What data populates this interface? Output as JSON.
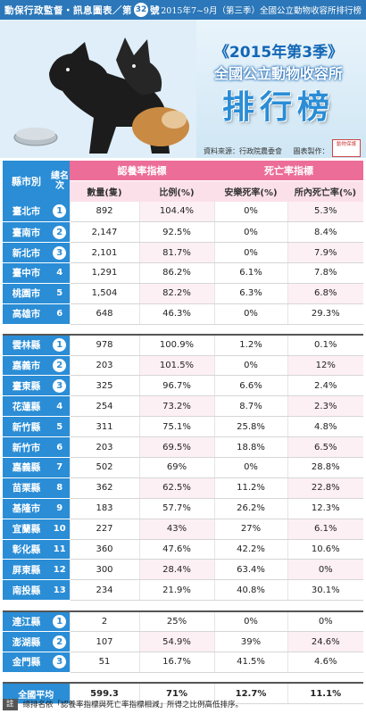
{
  "header": {
    "publication_pre": "動保行政監督・訊息圖表／第",
    "issue_no": "32",
    "publication_post": "號",
    "period": "2015年7~9月（第三季）全國公立動物收容所排行榜"
  },
  "banner": {
    "edition": "《2015年第3季》",
    "subtitle": "全國公立動物收容所",
    "title": "排行榜",
    "source_label": "資料來源：行政院農委會",
    "design_label": "圖表製作：",
    "logo_text": "動物保護"
  },
  "colors": {
    "header_blue": "#2a8dd6",
    "pink": "#ec6d98",
    "pink_light": "#fbe0ea"
  },
  "table": {
    "col_city": "縣市別",
    "col_rank": "總名次",
    "group_adoption": "認養率指標",
    "group_death": "死亡率指標",
    "col_count": "數量(隻)",
    "col_ratio": "比例(%)",
    "col_euth": "安樂死率(%)",
    "col_death": "所內死亡率(%)",
    "group1": [
      {
        "city": "臺北市",
        "rank": "1",
        "count": "892",
        "ratio": "104.4%",
        "euth": "0%",
        "death": "5.3%"
      },
      {
        "city": "臺南市",
        "rank": "2",
        "count": "2,147",
        "ratio": "92.5%",
        "euth": "0%",
        "death": "8.4%"
      },
      {
        "city": "新北市",
        "rank": "3",
        "count": "2,101",
        "ratio": "81.7%",
        "euth": "0%",
        "death": "7.9%"
      },
      {
        "city": "臺中市",
        "rank": "4",
        "count": "1,291",
        "ratio": "86.2%",
        "euth": "6.1%",
        "death": "7.8%"
      },
      {
        "city": "桃園市",
        "rank": "5",
        "count": "1,504",
        "ratio": "82.2%",
        "euth": "6.3%",
        "death": "6.8%"
      },
      {
        "city": "高雄市",
        "rank": "6",
        "count": "648",
        "ratio": "46.3%",
        "euth": "0%",
        "death": "29.3%"
      }
    ],
    "group2": [
      {
        "city": "雲林縣",
        "rank": "1",
        "count": "978",
        "ratio": "100.9%",
        "euth": "1.2%",
        "death": "0.1%"
      },
      {
        "city": "嘉義市",
        "rank": "2",
        "count": "203",
        "ratio": "101.5%",
        "euth": "0%",
        "death": "12%"
      },
      {
        "city": "臺東縣",
        "rank": "3",
        "count": "325",
        "ratio": "96.7%",
        "euth": "6.6%",
        "death": "2.4%"
      },
      {
        "city": "花蓮縣",
        "rank": "4",
        "count": "254",
        "ratio": "73.2%",
        "euth": "8.7%",
        "death": "2.3%"
      },
      {
        "city": "新竹縣",
        "rank": "5",
        "count": "311",
        "ratio": "75.1%",
        "euth": "25.8%",
        "death": "4.8%"
      },
      {
        "city": "新竹市",
        "rank": "6",
        "count": "203",
        "ratio": "69.5%",
        "euth": "18.8%",
        "death": "6.5%"
      },
      {
        "city": "嘉義縣",
        "rank": "7",
        "count": "502",
        "ratio": "69%",
        "euth": "0%",
        "death": "28.8%"
      },
      {
        "city": "苗栗縣",
        "rank": "8",
        "count": "362",
        "ratio": "62.5%",
        "euth": "11.2%",
        "death": "22.8%"
      },
      {
        "city": "基隆市",
        "rank": "9",
        "count": "183",
        "ratio": "57.7%",
        "euth": "26.2%",
        "death": "12.3%"
      },
      {
        "city": "宜蘭縣",
        "rank": "10",
        "count": "227",
        "ratio": "43%",
        "euth": "27%",
        "death": "6.1%"
      },
      {
        "city": "彰化縣",
        "rank": "11",
        "count": "360",
        "ratio": "47.6%",
        "euth": "42.2%",
        "death": "10.6%"
      },
      {
        "city": "屏東縣",
        "rank": "12",
        "count": "300",
        "ratio": "28.4%",
        "euth": "63.4%",
        "death": "0%"
      },
      {
        "city": "南投縣",
        "rank": "13",
        "count": "234",
        "ratio": "21.9%",
        "euth": "40.8%",
        "death": "30.1%"
      }
    ],
    "group3": [
      {
        "city": "連江縣",
        "rank": "1",
        "count": "2",
        "ratio": "25%",
        "euth": "0%",
        "death": "0%"
      },
      {
        "city": "澎湖縣",
        "rank": "2",
        "count": "107",
        "ratio": "54.9%",
        "euth": "39%",
        "death": "24.6%"
      },
      {
        "city": "金門縣",
        "rank": "3",
        "count": "51",
        "ratio": "16.7%",
        "euth": "41.5%",
        "death": "4.6%"
      }
    ],
    "average": {
      "city": "全國平均",
      "count": "599.3",
      "ratio": "71%",
      "euth": "12.7%",
      "death": "11.1%"
    }
  },
  "note": {
    "tag": "註",
    "text": "總排名依「認養率指標與死亡率指標相減」所得之比例高低排序。"
  }
}
